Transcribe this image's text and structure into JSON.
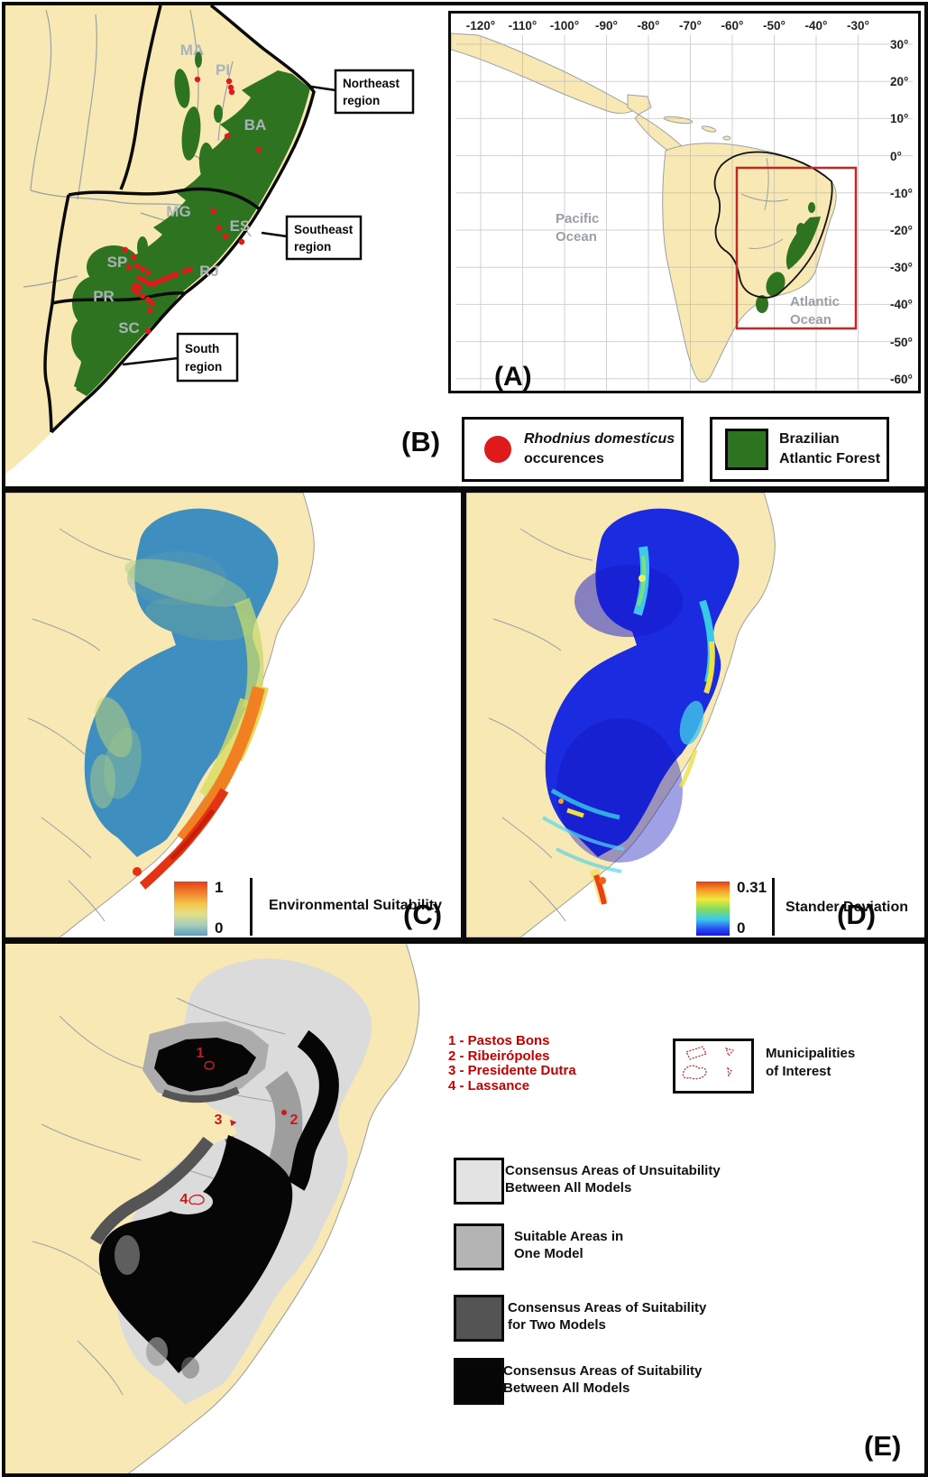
{
  "colors": {
    "land": "#f7e8b4",
    "forest_green": "#2e7420",
    "occurrence_red": "#e01a1a",
    "map_red": "#c22626",
    "sea": "#ffffff",
    "c_blob_base": "#3e8ec0",
    "d_blob_base": "#1b2be0",
    "e_light_gray": "#dbdbdb"
  },
  "panel_a": {
    "label": "(A)",
    "x_ticks": [
      "-120°",
      "-110°",
      "-100°",
      "-90°",
      "-80°",
      "-70°",
      "-60°",
      "-50°",
      "-40°",
      "-30°"
    ],
    "y_ticks": [
      "30°",
      "20°",
      "10°",
      "0°",
      "-10°",
      "-20°",
      "-30°",
      "-40°",
      "-50°",
      "-60°"
    ],
    "pacific": {
      "line1": "Pacific",
      "line2": "Ocean"
    },
    "atlantic": {
      "line1": "Atlantic",
      "line2": "Ocean"
    }
  },
  "panel_b": {
    "label": "(B)",
    "states": [
      "MA",
      "PI",
      "BA",
      "MG",
      "ES",
      "SP",
      "RJ",
      "PR",
      "SC"
    ],
    "callouts": {
      "northeast": {
        "line1": "Northeast",
        "line2": "region"
      },
      "southeast": {
        "line1": "Southeast",
        "line2": "region"
      },
      "south": {
        "line1": "South",
        "line2": "region"
      }
    },
    "occurrences": [
      [
        213,
        82
      ],
      [
        248,
        84
      ],
      [
        250,
        91
      ],
      [
        251,
        96
      ],
      [
        246,
        145
      ],
      [
        281,
        160
      ],
      [
        231,
        228
      ],
      [
        237,
        247
      ],
      [
        244,
        256
      ],
      [
        262,
        262
      ],
      [
        133,
        271
      ],
      [
        142,
        279
      ],
      [
        146,
        289
      ],
      [
        137,
        290
      ],
      [
        152,
        292
      ],
      [
        158,
        296
      ],
      [
        199,
        295
      ],
      [
        204,
        293
      ],
      [
        149,
        302
      ],
      [
        154,
        305
      ],
      [
        159,
        308
      ],
      [
        164,
        309
      ],
      [
        169,
        306
      ],
      [
        174,
        304
      ],
      [
        179,
        302
      ],
      [
        184,
        300
      ],
      [
        189,
        298
      ],
      [
        144,
        310
      ],
      [
        149,
        312
      ],
      [
        142,
        314
      ],
      [
        146,
        318
      ],
      [
        152,
        322
      ],
      [
        158,
        326
      ],
      [
        163,
        330
      ],
      [
        160,
        338
      ],
      [
        158,
        361
      ]
    ]
  },
  "legend_b": {
    "species": "Rhodnius domesticus",
    "species_sub": "occurences",
    "forest": {
      "line1": "Brazilian",
      "line2": "Atlantic Forest"
    }
  },
  "panel_c": {
    "label": "(C)",
    "title": "Environmental Suitability",
    "scale_max": "1",
    "scale_min": "0"
  },
  "panel_d": {
    "label": "(D)",
    "title": "Stander Deviation",
    "scale_max": "0.31",
    "scale_min": "0"
  },
  "panel_e": {
    "label": "(E)",
    "site_list": [
      "1 - Pastos Bons",
      "2 - Ribeirópoles",
      "3 - Presidente Dutra",
      "4 - Lassance"
    ],
    "box_label": {
      "line1": "Municipalities",
      "line2": "of Interest"
    },
    "legend": [
      {
        "key": "light",
        "line1": "Consensus Areas of Unsuitability",
        "line2": "Between All Models"
      },
      {
        "key": "mid",
        "line1": "Suitable Areas in",
        "line2": "One Model"
      },
      {
        "key": "dark",
        "line1": "Consensus Areas of Suitability",
        "line2": "for Two Models"
      },
      {
        "key": "black",
        "line1": "Consensus Areas of Suitability",
        "line2": "Between All Models"
      }
    ],
    "markers": [
      {
        "n": "1",
        "x": 216,
        "y": 126
      },
      {
        "n": "2",
        "x": 320,
        "y": 200
      },
      {
        "n": "3",
        "x": 236,
        "y": 200
      },
      {
        "n": "4",
        "x": 198,
        "y": 288
      }
    ]
  }
}
